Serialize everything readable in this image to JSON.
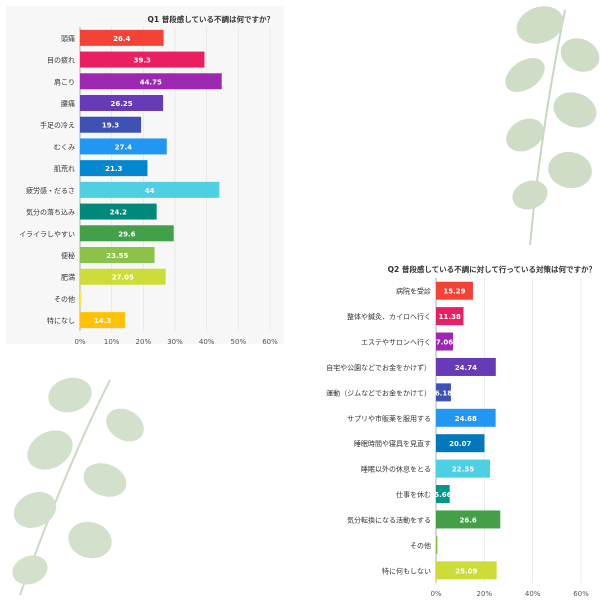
{
  "chart_data": [
    {
      "type": "bar",
      "orientation": "horizontal",
      "title": "Q1 普段感している不調は何ですか？",
      "categories": [
        "頭痛",
        "目の疲れ",
        "肩こり",
        "腰痛",
        "手足の冷え",
        "むくみ",
        "肌荒れ",
        "疲労感・だるさ",
        "気分の落ち込み",
        "イライラしやすい",
        "便秘",
        "肥満",
        "その他",
        "特になし"
      ],
      "values": [
        26.4,
        39.3,
        44.75,
        26.25,
        19.3,
        27.4,
        21.3,
        44,
        24.2,
        29.6,
        23.55,
        27.05,
        0.5,
        14.3
      ],
      "value_labels": [
        "26.4",
        "39.3",
        "44.75",
        "26.25",
        "19.3",
        "27.4",
        "21.3",
        "44",
        "24.2",
        "29.6",
        "23.55",
        "27.05",
        "",
        "14.3"
      ],
      "colors": [
        "#f44336",
        "#e91e63",
        "#9c27b0",
        "#673ab7",
        "#3f51b5",
        "#2196f3",
        "#0288d1",
        "#4dd0e1",
        "#00897b",
        "#43a047",
        "#8bc34a",
        "#cddc39",
        "#ffeb3b",
        "#ffc107"
      ],
      "xlim": [
        0,
        60
      ],
      "xticks": [
        "0%",
        "10%",
        "20%",
        "30%",
        "40%",
        "50%",
        "60%"
      ],
      "grid": true
    },
    {
      "type": "bar",
      "orientation": "horizontal",
      "title": "Q2 普段感している不調に対して行っている対策は何ですか？",
      "categories": [
        "病院を受診",
        "整体や鍼灸、カイロへ行く",
        "エステやサロンへ行く",
        "運動（自宅や公園などでお金をかけず）",
        "運動（ジムなどでお金をかけて）",
        "サプリや市販薬を服用する",
        "睡眠時間や寝具を見直す",
        "睡眠以外の休息をとる",
        "仕事を休む",
        "気分転換になる活動をする",
        "その他",
        "特に何もしない"
      ],
      "values": [
        15.29,
        11.38,
        7.06,
        24.74,
        6.18,
        24.68,
        20.07,
        22.35,
        5.66,
        26.6,
        0.6,
        25.09
      ],
      "value_labels": [
        "15.29",
        "11.38",
        "7.06",
        "24.74",
        "6.18",
        "24.68",
        "20.07",
        "22.35",
        "5.66",
        "26.6",
        "",
        "25.09"
      ],
      "colors": [
        "#f44336",
        "#e91e63",
        "#9c27b0",
        "#673ab7",
        "#3f51b5",
        "#2196f3",
        "#0277bd",
        "#4dd0e1",
        "#009688",
        "#43a047",
        "#8bc34a",
        "#cddc39"
      ],
      "xlim": [
        0,
        60
      ],
      "xticks": [
        "0%",
        "20%",
        "40%",
        "60%"
      ],
      "grid": true
    }
  ]
}
